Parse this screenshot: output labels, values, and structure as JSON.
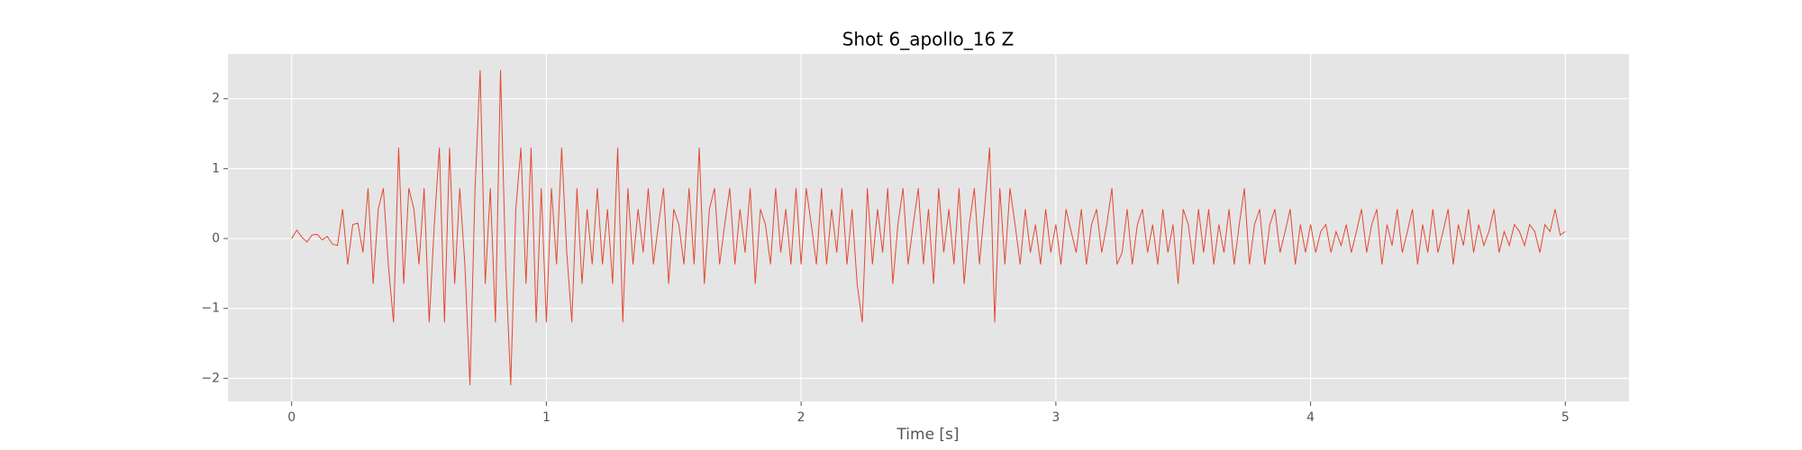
{
  "chart_data": {
    "type": "line",
    "title": "Shot 6_apollo_16 Z",
    "x_label": "Time [s]",
    "xlim": [
      -0.25,
      5.25
    ],
    "ylim": [
      -2.33,
      2.64
    ],
    "xticks": [
      0,
      1,
      2,
      3,
      4,
      5
    ],
    "yticks": [
      {
        "value": -2,
        "label": "−2"
      },
      {
        "value": -1,
        "label": "−1"
      },
      0,
      1,
      2
    ],
    "grid": true,
    "background": "#E5E5E5",
    "x": [
      0,
      0.02,
      0.04,
      0.06,
      0.08,
      0.1,
      0.12,
      0.14,
      0.16,
      0.18,
      0.2,
      0.22,
      0.24,
      0.26,
      0.28,
      0.3,
      0.32,
      0.34,
      0.36,
      0.38,
      0.4,
      0.42,
      0.44,
      0.46,
      0.48,
      0.5,
      0.52,
      0.54,
      0.56,
      0.58,
      0.6,
      0.62,
      0.64,
      0.66,
      0.68,
      0.7,
      0.72,
      0.74,
      0.76,
      0.78,
      0.8,
      0.82,
      0.84,
      0.86,
      0.88,
      0.9,
      0.92,
      0.94,
      0.96,
      0.98,
      1,
      1.02,
      1.04,
      1.06,
      1.08,
      1.1,
      1.12,
      1.14,
      1.16,
      1.18,
      1.2,
      1.22,
      1.24,
      1.26,
      1.28,
      1.3,
      1.32,
      1.34,
      1.36,
      1.38,
      1.4,
      1.42,
      1.44,
      1.46,
      1.48,
      1.5,
      1.52,
      1.54,
      1.56,
      1.58,
      1.6,
      1.62,
      1.64,
      1.66,
      1.68,
      1.7,
      1.72,
      1.74,
      1.76,
      1.78,
      1.8,
      1.82,
      1.84,
      1.86,
      1.88,
      1.9,
      1.92,
      1.94,
      1.96,
      1.98,
      2,
      2.02,
      2.04,
      2.06,
      2.08,
      2.1,
      2.12,
      2.14,
      2.16,
      2.18,
      2.2,
      2.22,
      2.24,
      2.26,
      2.28,
      2.3,
      2.32,
      2.34,
      2.36,
      2.38,
      2.4,
      2.42,
      2.44,
      2.46,
      2.48,
      2.5,
      2.52,
      2.54,
      2.56,
      2.58,
      2.6,
      2.62,
      2.64,
      2.66,
      2.68,
      2.7,
      2.72,
      2.74,
      2.76,
      2.78,
      2.8,
      2.82,
      2.84,
      2.86,
      2.88,
      2.9,
      2.92,
      2.94,
      2.96,
      2.98,
      3,
      3.02,
      3.04,
      3.06,
      3.08,
      3.1,
      3.12,
      3.14,
      3.16,
      3.18,
      3.2,
      3.22,
      3.24,
      3.26,
      3.28,
      3.3,
      3.32,
      3.34,
      3.36,
      3.38,
      3.4,
      3.42,
      3.44,
      3.46,
      3.48,
      3.5,
      3.52,
      3.54,
      3.56,
      3.58,
      3.6,
      3.62,
      3.64,
      3.66,
      3.68,
      3.7,
      3.72,
      3.74,
      3.76,
      3.78,
      3.8,
      3.82,
      3.84,
      3.86,
      3.88,
      3.9,
      3.92,
      3.94,
      3.96,
      3.98,
      4,
      4.02,
      4.04,
      4.06,
      4.08,
      4.1,
      4.12,
      4.14,
      4.16,
      4.18,
      4.2,
      4.22,
      4.24,
      4.26,
      4.28,
      4.3,
      4.32,
      4.34,
      4.36,
      4.38,
      4.4,
      4.42,
      4.44,
      4.46,
      4.48,
      4.5,
      4.52,
      4.54,
      4.56,
      4.58,
      4.6,
      4.62,
      4.64,
      4.66,
      4.68,
      4.7,
      4.72,
      4.74,
      4.76,
      4.78,
      4.8,
      4.82,
      4.84,
      4.86,
      4.88,
      4.9,
      4.92,
      4.94,
      4.96,
      4.98,
      5
    ],
    "series": [
      {
        "color": "#E24A33",
        "values": [
          0,
          0.12,
          0.02,
          -0.05,
          0.05,
          0.06,
          -0.02,
          0.03,
          -0.08,
          -0.1,
          0.42,
          -0.37,
          0.2,
          0.22,
          -0.2,
          0.72,
          -0.65,
          0.42,
          0.72,
          -0.4,
          -1.2,
          1.3,
          -0.65,
          0.72,
          0.42,
          -0.37,
          0.72,
          -1.2,
          0.2,
          1.3,
          -1.2,
          1.3,
          -0.65,
          0.72,
          -0.37,
          -2.1,
          0.72,
          2.41,
          -0.65,
          0.72,
          -1.2,
          2.41,
          -0.37,
          -2.1,
          0.42,
          1.3,
          -0.65,
          1.3,
          -1.2,
          0.72,
          -1.2,
          0.72,
          -0.37,
          1.3,
          -0.2,
          -1.2,
          0.72,
          -0.65,
          0.42,
          -0.37,
          0.72,
          -0.37,
          0.42,
          -0.65,
          1.3,
          -1.2,
          0.72,
          -0.37,
          0.42,
          -0.2,
          0.72,
          -0.37,
          0.2,
          0.72,
          -0.65,
          0.42,
          0.2,
          -0.37,
          0.72,
          -0.37,
          1.3,
          -0.65,
          0.42,
          0.72,
          -0.37,
          0.2,
          0.72,
          -0.37,
          0.42,
          -0.2,
          0.72,
          -0.65,
          0.42,
          0.2,
          -0.37,
          0.72,
          -0.2,
          0.42,
          -0.37,
          0.72,
          -0.37,
          0.72,
          0.2,
          -0.37,
          0.72,
          -0.37,
          0.42,
          -0.2,
          0.72,
          -0.37,
          0.42,
          -0.65,
          -1.2,
          0.72,
          -0.37,
          0.42,
          -0.2,
          0.72,
          -0.65,
          0.2,
          0.72,
          -0.37,
          0.2,
          0.72,
          -0.37,
          0.42,
          -0.65,
          0.72,
          -0.2,
          0.42,
          -0.37,
          0.72,
          -0.65,
          0.2,
          0.72,
          -0.37,
          0.42,
          1.3,
          -1.2,
          0.72,
          -0.37,
          0.72,
          0.2,
          -0.37,
          0.42,
          -0.2,
          0.2,
          -0.37,
          0.42,
          -0.2,
          0.2,
          -0.37,
          0.42,
          0.1,
          -0.2,
          0.42,
          -0.37,
          0.2,
          0.42,
          -0.2,
          0.2,
          0.72,
          -0.37,
          -0.2,
          0.42,
          -0.37,
          0.2,
          0.42,
          -0.2,
          0.2,
          -0.37,
          0.42,
          -0.2,
          0.2,
          -0.65,
          0.42,
          0.2,
          -0.37,
          0.42,
          -0.2,
          0.42,
          -0.37,
          0.2,
          -0.2,
          0.42,
          -0.37,
          0.2,
          0.72,
          -0.37,
          0.2,
          0.42,
          -0.37,
          0.2,
          0.42,
          -0.2,
          0.1,
          0.42,
          -0.37,
          0.2,
          -0.2,
          0.2,
          -0.2,
          0.1,
          0.2,
          -0.2,
          0.1,
          -0.1,
          0.2,
          -0.2,
          0.1,
          0.42,
          -0.2,
          0.2,
          0.42,
          -0.37,
          0.2,
          -0.1,
          0.42,
          -0.2,
          0.1,
          0.42,
          -0.37,
          0.2,
          -0.2,
          0.42,
          -0.2,
          0.1,
          0.42,
          -0.37,
          0.2,
          -0.1,
          0.42,
          -0.2,
          0.2,
          -0.1,
          0.1,
          0.42,
          -0.2,
          0.1,
          -0.1,
          0.2,
          0.1,
          -0.1,
          0.2,
          0.1,
          -0.2,
          0.2,
          0.1,
          0.42,
          0.05,
          0.1
        ]
      }
    ]
  }
}
